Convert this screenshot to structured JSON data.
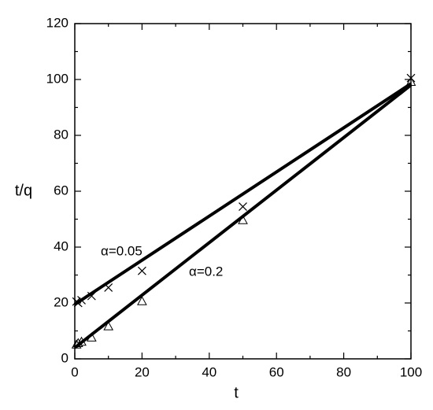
{
  "chart_data": {
    "type": "scatter",
    "x_label": "t",
    "y_label": "t/q",
    "xlim": [
      0,
      100
    ],
    "ylim": [
      0,
      120
    ],
    "xticks": [
      0,
      20,
      40,
      60,
      80,
      100
    ],
    "yticks": [
      0,
      20,
      40,
      60,
      80,
      100,
      120
    ],
    "xminor": [
      10,
      30,
      50,
      70,
      90
    ],
    "yminor": [
      10,
      30,
      50,
      70,
      90,
      110
    ],
    "series": [
      {
        "marker": "x",
        "color": "#000000",
        "x": [
          0.5,
          1,
          2,
          5,
          10,
          20,
          50,
          100
        ],
        "values": [
          20.5,
          20,
          21,
          22.5,
          25.5,
          31.5,
          54.5,
          100.5
        ]
      },
      {
        "marker": "triangle",
        "color": "#000000",
        "x": [
          0.5,
          1,
          2,
          5,
          10,
          20,
          50,
          100
        ],
        "values": [
          5,
          5.5,
          6,
          7.5,
          11.5,
          20.5,
          49.5,
          99
        ]
      },
      {
        "marker": "line",
        "color": "#000000",
        "x": [
          0,
          100
        ],
        "values": [
          19.5,
          98.5
        ]
      },
      {
        "marker": "line",
        "color": "#000000",
        "x": [
          0,
          100
        ],
        "values": [
          4,
          98
        ]
      }
    ],
    "annotations": [
      "α=0.05",
      "α=0.2"
    ]
  }
}
